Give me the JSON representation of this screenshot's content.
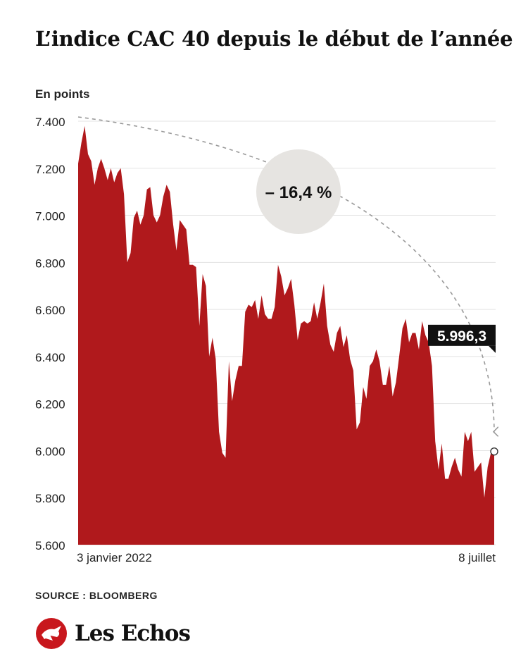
{
  "title": "L’indice CAC 40 depuis le début de l’année",
  "unit_label": "En points",
  "source": "SOURCE : BLOOMBERG",
  "brand": "Les Echos",
  "colors": {
    "area": "#b0191c",
    "badge": "#e6e4e1",
    "callout": "#111111",
    "grid": "#e3e3e3",
    "arrow": "#999999"
  },
  "chart_data": {
    "type": "area",
    "title": "L’indice CAC 40 depuis le début de l’année",
    "ylabel": "En points",
    "ylim": [
      5600,
      7400
    ],
    "y_ticks": [
      7400,
      7200,
      7000,
      6800,
      6600,
      6400,
      6200,
      6000,
      5800,
      5600
    ],
    "y_tick_labels": [
      "7.400",
      "7.200",
      "7.000",
      "6.800",
      "6.600",
      "6.400",
      "6.200",
      "6.000",
      "5.800",
      "5.600"
    ],
    "x_start_label": "3 janvier 2022",
    "x_end_label": "8 juillet",
    "grid": true,
    "change_label": "– 16,4 %",
    "last_value_label": "5.996,3",
    "series": [
      {
        "values": [
          7220,
          7310,
          7380,
          7260,
          7230,
          7130,
          7200,
          7240,
          7200,
          7150,
          7200,
          7140,
          7180,
          7200,
          7090,
          6800,
          6840,
          6990,
          7020,
          6960,
          7000,
          7110,
          7120,
          7000,
          6970,
          7000,
          7080,
          7130,
          7100,
          6960,
          6850,
          6980,
          6960,
          6940,
          6790,
          6790,
          6780,
          6530,
          6750,
          6700,
          6400,
          6480,
          6390,
          6080,
          5990,
          5970,
          6380,
          6210,
          6300,
          6360,
          6360,
          6590,
          6620,
          6610,
          6640,
          6560,
          6660,
          6580,
          6560,
          6560,
          6610,
          6790,
          6740,
          6660,
          6690,
          6730,
          6620,
          6470,
          6540,
          6550,
          6540,
          6550,
          6630,
          6560,
          6630,
          6710,
          6530,
          6450,
          6420,
          6500,
          6530,
          6440,
          6490,
          6390,
          6340,
          6090,
          6120,
          6270,
          6220,
          6360,
          6380,
          6430,
          6380,
          6280,
          6280,
          6360,
          6230,
          6290,
          6400,
          6520,
          6560,
          6460,
          6500,
          6500,
          6430,
          6550,
          6490,
          6460,
          6360,
          6040,
          5920,
          6030,
          5880,
          5880,
          5930,
          5970,
          5920,
          5890,
          6080,
          6040,
          6080,
          5910,
          5930,
          5950,
          5800,
          5930,
          5990,
          5996.3
        ]
      }
    ]
  }
}
